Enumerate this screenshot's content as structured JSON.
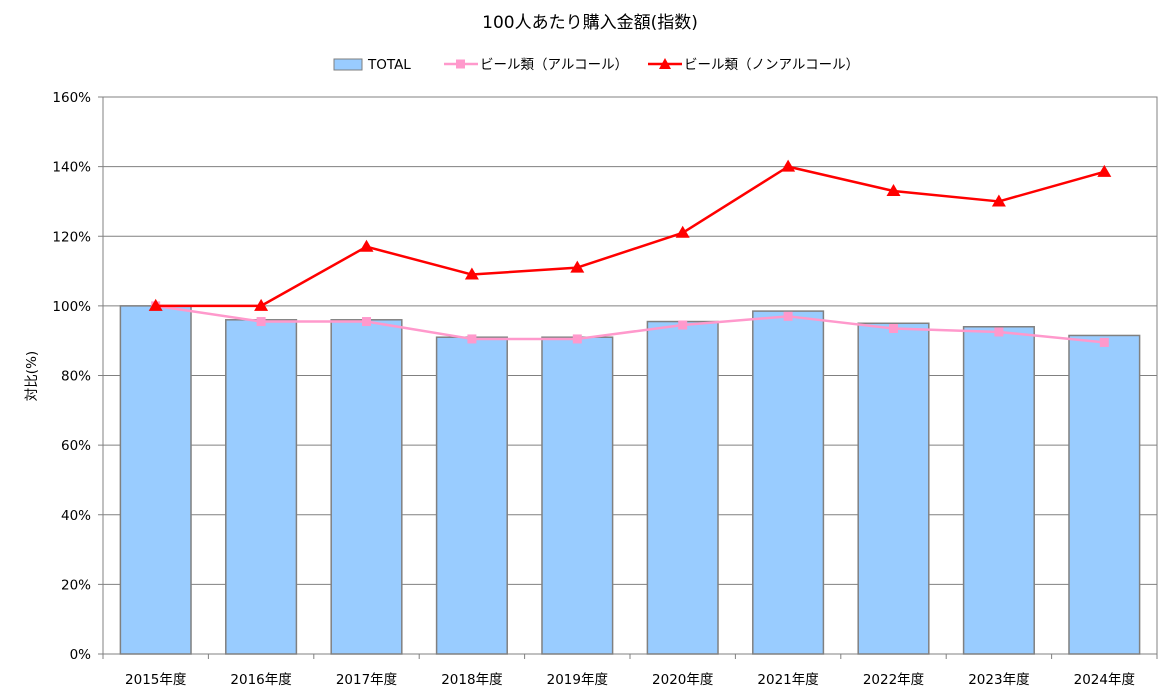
{
  "chart_data": {
    "type": "bar",
    "title": "100人あたり購入金額(指数)",
    "xlabel": "",
    "ylabel": "対比(%)",
    "ylim": [
      0,
      160
    ],
    "yticks": [
      "0%",
      "20%",
      "40%",
      "60%",
      "80%",
      "100%",
      "120%",
      "140%",
      "160%"
    ],
    "grid": true,
    "legend_position": "top",
    "categories": [
      "2015年度",
      "2016年度",
      "2017年度",
      "2018年度",
      "2019年度",
      "2020年度",
      "2021年度",
      "2022年度",
      "2023年度",
      "2024年度"
    ],
    "series": [
      {
        "name": "TOTAL",
        "type": "bar",
        "color": "#99ccff",
        "values": [
          100,
          96,
          96,
          91,
          91,
          95.5,
          98.5,
          95,
          94,
          91.5
        ]
      },
      {
        "name": "ビール類（アルコール）",
        "type": "line",
        "marker": "square",
        "color": "#ff99cc",
        "values": [
          100,
          95.5,
          95.5,
          90.5,
          90.5,
          94.5,
          97,
          93.5,
          92.5,
          89.5
        ]
      },
      {
        "name": "ビール類（ノンアルコール）",
        "type": "line",
        "marker": "triangle",
        "color": "#ff0000",
        "values": [
          100,
          100,
          117,
          109,
          111,
          121,
          140,
          133,
          130,
          138.5
        ]
      }
    ]
  }
}
